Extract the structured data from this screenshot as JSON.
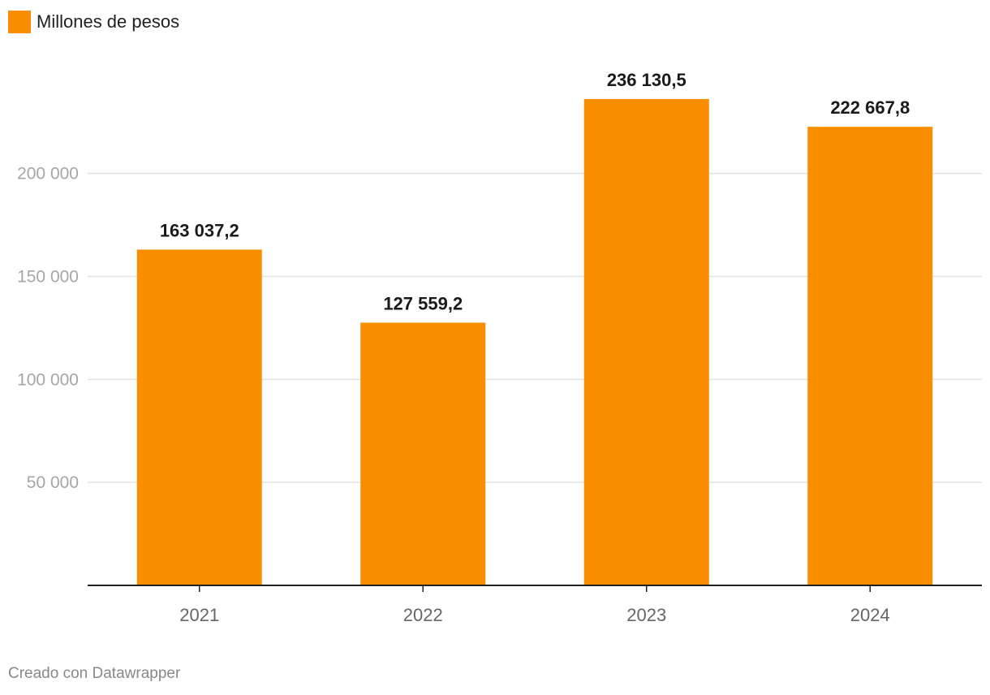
{
  "chart_data": {
    "type": "bar",
    "categories": [
      "2021",
      "2022",
      "2023",
      "2024"
    ],
    "series": [
      {
        "name": "Millones de pesos",
        "values": [
          163037.2,
          127559.2,
          236130.5,
          222667.8
        ]
      }
    ],
    "value_labels": [
      "163 037,2",
      "127 559,2",
      "236 130,5",
      "222 667,8"
    ],
    "y_ticks": [
      50000,
      100000,
      150000,
      200000
    ],
    "y_tick_labels": [
      "50 000",
      "100 000",
      "150 000",
      "200 000"
    ],
    "ylim": [
      0,
      236130.5
    ],
    "title": "",
    "xlabel": "",
    "ylabel": "",
    "grid": true,
    "legend": "top-left",
    "colors": {
      "bar": "#f98e00",
      "grid": "#e2e2e2",
      "axis": "#222222",
      "tick_text": "#a6a6a6",
      "category_text": "#666666",
      "value_text": "#1a1a1a"
    }
  },
  "footer": {
    "credit": "Creado con Datawrapper"
  }
}
